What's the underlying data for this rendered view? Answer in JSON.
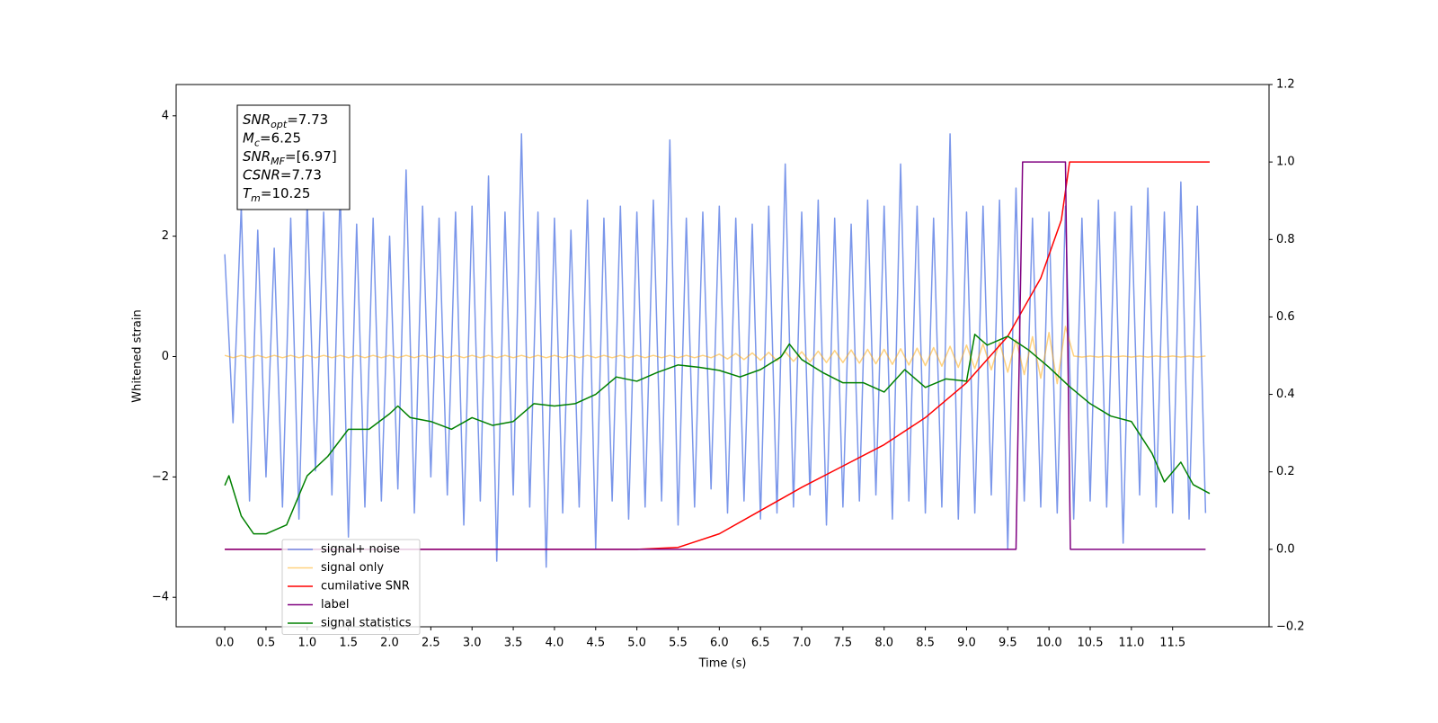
{
  "chart_data": {
    "type": "line",
    "xlabel": "Time (s)",
    "ylabel": "Whitened strain",
    "xlim": [
      -0.59,
      12.67
    ],
    "ylim": [
      -4.49,
      4.52
    ],
    "y2lim": [
      -0.2,
      1.2
    ],
    "xticks": [
      {
        "value": 0,
        "label": "0.0"
      },
      0.5,
      {
        "value": 1,
        "label": "1.0"
      },
      1.5,
      {
        "value": 2,
        "label": "2.0"
      },
      2.5,
      {
        "value": 3,
        "label": "3.0"
      },
      3.5,
      {
        "value": 4,
        "label": "4.0"
      },
      4.5,
      {
        "value": 5,
        "label": "5.0"
      },
      5.5,
      {
        "value": 6,
        "label": "6.0"
      },
      6.5,
      {
        "value": 7,
        "label": "7.0"
      },
      7.5,
      {
        "value": 8,
        "label": "8.0"
      },
      8.5,
      {
        "value": 9,
        "label": "9.0"
      },
      9.5,
      {
        "value": 10,
        "label": "10.0"
      },
      10.5,
      {
        "value": 11,
        "label": "11.0"
      },
      11.5
    ],
    "yticks": [
      {
        "value": -4,
        "label": "−4"
      },
      {
        "value": -2,
        "label": "−2"
      },
      0,
      2,
      4
    ],
    "y2ticks": [
      {
        "value": -0.2,
        "label": "−0.2"
      },
      {
        "value": 0,
        "label": "0.0"
      },
      0.2,
      0.4,
      0.6,
      0.8,
      {
        "value": 1,
        "label": "1.0"
      },
      1.2
    ],
    "legend": "lower left",
    "annotation": [
      {
        "main": "SNR",
        "sub": "opt",
        "rest": "=7.73"
      },
      {
        "main": "M",
        "sub": "c",
        "rest": "=6.25"
      },
      {
        "main": "SNR",
        "sub": "MF",
        "rest": "=[6.97]"
      },
      {
        "main": "CSNR",
        "rest": "=7.73"
      },
      {
        "main": "T",
        "sub": "m",
        "rest": "=10.25"
      }
    ],
    "series": [
      {
        "name": "signal+ noise",
        "color": "#4169e1",
        "opacity": 0.7,
        "axis": "y",
        "x": [
          0.0,
          0.1,
          0.2,
          0.3,
          0.4,
          0.5,
          0.6,
          0.7,
          0.8,
          0.9,
          1.0,
          1.1,
          1.2,
          1.3,
          1.4,
          1.5,
          1.6,
          1.7,
          1.8,
          1.9,
          2.0,
          2.1,
          2.2,
          2.3,
          2.4,
          2.5,
          2.6,
          2.7,
          2.8,
          2.9,
          3.0,
          3.1,
          3.2,
          3.3,
          3.4,
          3.5,
          3.6,
          3.7,
          3.8,
          3.9,
          4.0,
          4.1,
          4.2,
          4.3,
          4.4,
          4.5,
          4.6,
          4.7,
          4.8,
          4.9,
          5.0,
          5.1,
          5.2,
          5.3,
          5.4,
          5.5,
          5.6,
          5.7,
          5.8,
          5.9,
          6.0,
          6.1,
          6.2,
          6.3,
          6.4,
          6.5,
          6.6,
          6.7,
          6.8,
          6.9,
          7.0,
          7.1,
          7.2,
          7.3,
          7.4,
          7.5,
          7.6,
          7.7,
          7.8,
          7.9,
          8.0,
          8.1,
          8.2,
          8.3,
          8.4,
          8.5,
          8.6,
          8.7,
          8.8,
          8.9,
          9.0,
          9.1,
          9.2,
          9.3,
          9.4,
          9.5,
          9.6,
          9.7,
          9.8,
          9.9,
          10.0,
          10.1,
          10.2,
          10.3,
          10.4,
          10.5,
          10.6,
          10.7,
          10.8,
          10.9,
          11.0,
          11.1,
          11.2,
          11.3,
          11.4,
          11.5,
          11.6,
          11.7,
          11.8,
          11.9
        ],
        "values": [
          1.7,
          -1.1,
          2.5,
          -2.4,
          2.1,
          -2.0,
          1.8,
          -2.5,
          2.3,
          -2.7,
          2.6,
          -1.9,
          2.4,
          -2.3,
          2.8,
          -3.0,
          2.2,
          -2.5,
          2.3,
          -2.4,
          2.0,
          -2.2,
          3.1,
          -2.6,
          2.5,
          -2.0,
          2.3,
          -2.3,
          2.4,
          -2.8,
          2.5,
          -2.4,
          3.0,
          -3.4,
          2.4,
          -2.3,
          3.7,
          -2.5,
          2.4,
          -3.5,
          2.3,
          -2.6,
          2.1,
          -2.5,
          2.6,
          -3.2,
          2.3,
          -2.4,
          2.5,
          -2.7,
          2.4,
          -2.5,
          2.6,
          -2.4,
          3.6,
          -2.8,
          2.3,
          -2.5,
          2.4,
          -2.2,
          2.5,
          -2.6,
          2.3,
          -2.4,
          2.2,
          -2.7,
          2.5,
          -2.6,
          3.2,
          -2.5,
          2.4,
          -2.3,
          2.6,
          -2.8,
          2.3,
          -2.5,
          2.2,
          -2.4,
          2.6,
          -2.3,
          2.5,
          -2.7,
          3.2,
          -2.4,
          2.5,
          -2.6,
          2.3,
          -2.5,
          3.7,
          -2.7,
          2.4,
          -2.6,
          2.5,
          -2.3,
          2.6,
          -3.2,
          2.8,
          -2.4,
          2.3,
          -2.5,
          2.4,
          -2.6,
          2.5,
          -2.7,
          2.3,
          -2.4,
          2.6,
          -2.5,
          2.4,
          -3.1,
          2.5,
          -2.3,
          2.8,
          -2.5,
          2.4,
          -2.6,
          2.9,
          -2.7,
          2.5,
          -2.6
        ]
      },
      {
        "name": "signal only",
        "color": "#ffa500",
        "opacity": 0.5,
        "axis": "y",
        "x": [
          0.0,
          0.1,
          0.2,
          0.3,
          0.4,
          0.5,
          0.6,
          0.7,
          0.8,
          0.9,
          1.0,
          1.1,
          1.2,
          1.3,
          1.4,
          1.5,
          1.6,
          1.7,
          1.8,
          1.9,
          2.0,
          2.1,
          2.2,
          2.3,
          2.4,
          2.5,
          2.6,
          2.7,
          2.8,
          2.9,
          3.0,
          3.1,
          3.2,
          3.3,
          3.4,
          3.5,
          3.6,
          3.7,
          3.8,
          3.9,
          4.0,
          4.1,
          4.2,
          4.3,
          4.4,
          4.5,
          4.6,
          4.7,
          4.8,
          4.9,
          5.0,
          5.1,
          5.2,
          5.3,
          5.4,
          5.5,
          5.6,
          5.7,
          5.8,
          5.9,
          6.0,
          6.1,
          6.2,
          6.3,
          6.4,
          6.5,
          6.6,
          6.7,
          6.8,
          6.9,
          7.0,
          7.1,
          7.2,
          7.3,
          7.4,
          7.5,
          7.6,
          7.7,
          7.8,
          7.9,
          8.0,
          8.1,
          8.2,
          8.3,
          8.4,
          8.5,
          8.6,
          8.7,
          8.8,
          8.9,
          9.0,
          9.1,
          9.2,
          9.3,
          9.4,
          9.5,
          9.6,
          9.7,
          9.8,
          9.9,
          10.0,
          10.1,
          10.2,
          10.3,
          10.4,
          10.5,
          10.6,
          10.7,
          10.8,
          10.9,
          11.0,
          11.1,
          11.2,
          11.3,
          11.4,
          11.5,
          11.6,
          11.7,
          11.8,
          11.9
        ],
        "values": [
          0.02,
          -0.02,
          0.02,
          -0.02,
          0.02,
          -0.02,
          0.02,
          -0.02,
          0.02,
          -0.02,
          0.02,
          -0.02,
          0.02,
          -0.02,
          0.02,
          -0.02,
          0.02,
          -0.02,
          0.02,
          -0.02,
          0.02,
          -0.02,
          0.02,
          -0.02,
          0.02,
          -0.02,
          0.02,
          -0.02,
          0.02,
          -0.02,
          0.02,
          -0.02,
          0.02,
          -0.02,
          0.02,
          -0.02,
          0.02,
          -0.02,
          0.02,
          -0.02,
          0.02,
          -0.02,
          0.02,
          -0.02,
          0.02,
          -0.02,
          0.02,
          -0.02,
          0.02,
          -0.02,
          0.02,
          -0.02,
          0.02,
          -0.02,
          0.02,
          -0.02,
          0.02,
          -0.02,
          0.02,
          -0.02,
          0.04,
          -0.04,
          0.05,
          -0.05,
          0.06,
          -0.06,
          0.07,
          -0.07,
          0.08,
          -0.08,
          0.08,
          -0.09,
          0.09,
          -0.1,
          0.1,
          -0.1,
          0.11,
          -0.11,
          0.12,
          -0.12,
          0.12,
          -0.13,
          0.13,
          -0.14,
          0.14,
          -0.15,
          0.15,
          -0.16,
          0.17,
          -0.18,
          0.19,
          -0.2,
          0.21,
          -0.22,
          0.24,
          -0.26,
          0.28,
          -0.3,
          0.33,
          -0.36,
          0.4,
          -0.45,
          0.5,
          0.01,
          -0.01,
          0.01,
          -0.01,
          0.01,
          -0.01,
          0.01,
          -0.01,
          0.01,
          -0.01,
          0.01,
          -0.01,
          0.01,
          -0.01,
          0.01,
          -0.01,
          0.01
        ]
      },
      {
        "name": "cumilative SNR",
        "color": "#ff0000",
        "axis": "y2",
        "x": [
          0.0,
          5.0,
          5.5,
          6.0,
          6.5,
          7.0,
          7.5,
          8.0,
          8.5,
          9.0,
          9.5,
          9.9,
          10.15,
          10.25,
          11.95
        ],
        "values": [
          0,
          0,
          0.005,
          0.04,
          0.1,
          0.16,
          0.215,
          0.27,
          0.34,
          0.43,
          0.55,
          0.7,
          0.85,
          1.0,
          1.0
        ]
      },
      {
        "name": "label",
        "color": "#800080",
        "axis": "y2",
        "x": [
          0.0,
          9.6,
          9.68,
          10.2,
          10.26,
          11.9
        ],
        "values": [
          0,
          0,
          1,
          1,
          0,
          0
        ]
      },
      {
        "name": "signal statistics",
        "color": "#008000",
        "axis": "y2",
        "x": [
          0.0,
          0.05,
          0.2,
          0.35,
          0.5,
          0.75,
          1.0,
          1.25,
          1.5,
          1.75,
          2.0,
          2.1,
          2.25,
          2.5,
          2.75,
          3.0,
          3.25,
          3.5,
          3.75,
          4.0,
          4.25,
          4.5,
          4.75,
          5.0,
          5.25,
          5.5,
          5.75,
          6.0,
          6.25,
          6.5,
          6.75,
          6.85,
          7.0,
          7.25,
          7.5,
          7.75,
          8.0,
          8.25,
          8.5,
          8.75,
          9.0,
          9.1,
          9.25,
          9.5,
          9.75,
          10.0,
          10.25,
          10.5,
          10.75,
          11.0,
          11.25,
          11.4,
          11.6,
          11.75,
          11.95
        ],
        "values": [
          0.165,
          0.19,
          0.086,
          0.04,
          0.04,
          0.063,
          0.19,
          0.24,
          0.31,
          0.31,
          0.35,
          0.37,
          0.34,
          0.33,
          0.31,
          0.34,
          0.32,
          0.33,
          0.376,
          0.37,
          0.376,
          0.4,
          0.445,
          0.434,
          0.457,
          0.476,
          0.47,
          0.462,
          0.445,
          0.464,
          0.497,
          0.53,
          0.49,
          0.457,
          0.43,
          0.43,
          0.406,
          0.464,
          0.418,
          0.44,
          0.434,
          0.555,
          0.527,
          0.55,
          0.515,
          0.47,
          0.42,
          0.376,
          0.344,
          0.33,
          0.248,
          0.174,
          0.225,
          0.167,
          0.144
        ]
      }
    ]
  }
}
